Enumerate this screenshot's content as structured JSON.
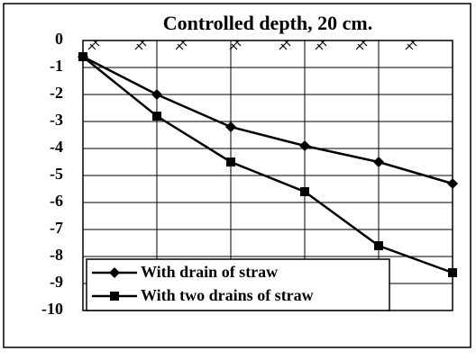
{
  "chart_data": {
    "type": "line",
    "title": "Controlled depth, 20 cm.",
    "categories": [
      null,
      null,
      null,
      null,
      null,
      null
    ],
    "series": [
      {
        "name": "With drain of straw",
        "color": "#000000",
        "marker": "diamond",
        "values": [
          -0.6,
          -2.0,
          -3.2,
          -3.9,
          -4.5,
          -5.3
        ]
      },
      {
        "name": "With two drains of straw",
        "color": "#000000",
        "marker": "square",
        "values": [
          -0.6,
          -2.8,
          -4.5,
          -5.6,
          -7.6,
          -8.6
        ]
      }
    ],
    "ylim": [
      -10,
      0
    ],
    "yticks": [
      0,
      -1,
      -2,
      -3,
      -4,
      -5,
      -6,
      -7,
      -8,
      -9,
      -10
    ],
    "grid": true,
    "legend": "lower left"
  }
}
